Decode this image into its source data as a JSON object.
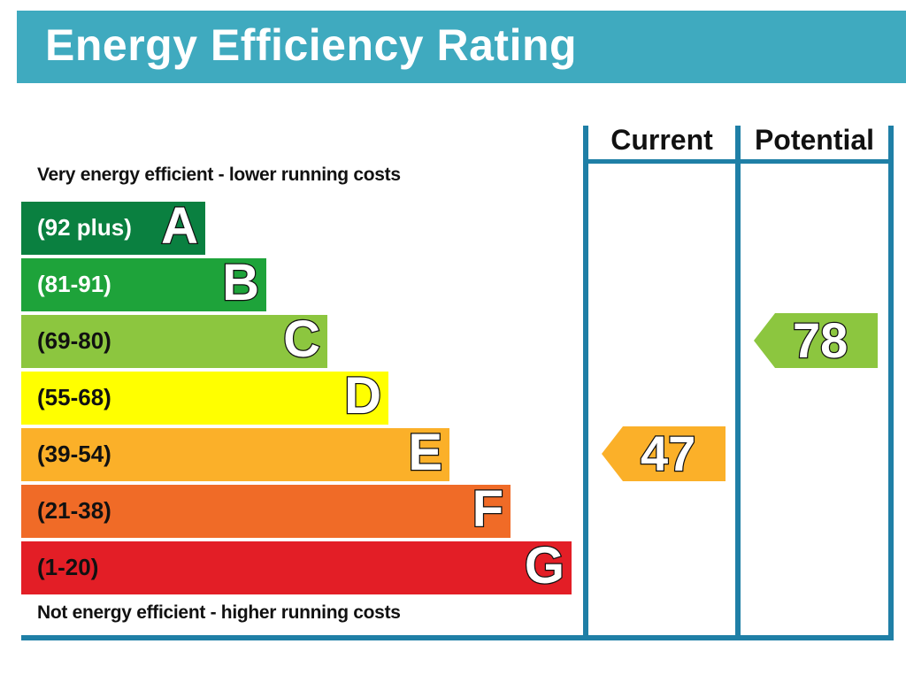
{
  "title": "Energy Efficiency Rating",
  "top_description": "Very energy efficient - lower running costs",
  "bottom_description": "Not energy efficient - higher running costs",
  "columns": [
    "Current",
    "Potential"
  ],
  "chart_data": {
    "type": "bar",
    "categories": [
      "A",
      "B",
      "C",
      "D",
      "E",
      "F",
      "G"
    ],
    "bands": [
      {
        "letter": "A",
        "range": "(92 plus)",
        "color": "#0a8040",
        "text_color": "#ffffff",
        "min": 92
      },
      {
        "letter": "B",
        "range": "(81-91)",
        "color": "#1ea33a",
        "text_color": "#ffffff",
        "min": 81
      },
      {
        "letter": "C",
        "range": "(69-80)",
        "color": "#8cc63f",
        "text_color": "#111111",
        "min": 69
      },
      {
        "letter": "D",
        "range": "(55-68)",
        "color": "#ffff00",
        "text_color": "#111111",
        "min": 55
      },
      {
        "letter": "E",
        "range": "(39-54)",
        "color": "#fbb029",
        "text_color": "#111111",
        "min": 39
      },
      {
        "letter": "F",
        "range": "(21-38)",
        "color": "#f06b27",
        "text_color": "#111111",
        "min": 21
      },
      {
        "letter": "G",
        "range": "(1-20)",
        "color": "#e31e26",
        "text_color": "#111111",
        "min": 1
      }
    ],
    "ratings": [
      {
        "column": "Current",
        "value": 47,
        "band": "E",
        "color": "#fbb029"
      },
      {
        "column": "Potential",
        "value": 78,
        "band": "C",
        "color": "#8cc63f"
      }
    ]
  }
}
